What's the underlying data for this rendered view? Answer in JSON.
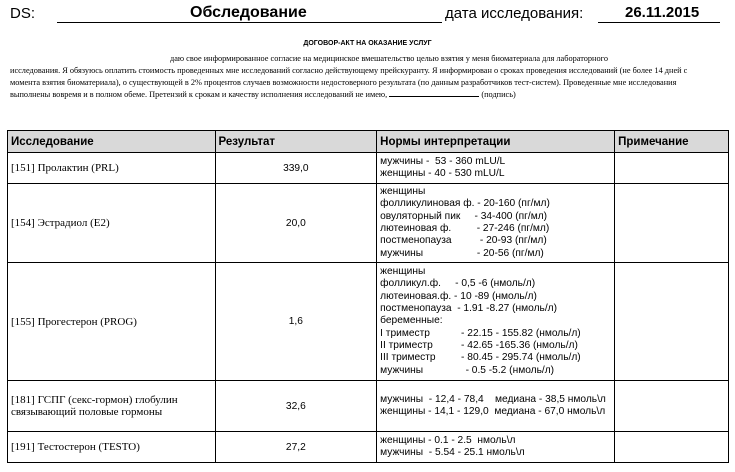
{
  "header": {
    "ds_label": "DS:",
    "title": "Обследование",
    "date_label": "дата исследования:",
    "date": "26.11.2015"
  },
  "contract": {
    "title": "ДОГОВОР-АКТ НА ОКАЗАНИЕ УСЛУГ",
    "p1": "даю свое информированное согласие на медицинское вмешательство целью взятия у меня биоматериала для лабораторного",
    "p2": "исследования. Я обязуюсь оплатить стоимость проведенных мне исследований согласно действующему прейскуранту. Я информирован о сроках проведения исследований (не более 14 дней с момента взятия биоматериала), о существующей в 2% процентов случаев возможности недостоверного результата (по данным разработчиков тест-систем). Проведенные мне исследования выполнены вовремя и в полном обеме. Претензий к срокам и качеству исполнения исследований не имею,",
    "signature": "(подпись)"
  },
  "table": {
    "headers": [
      "Исследование",
      "Результат",
      "Нормы интерпретации",
      "Примечание"
    ],
    "rows": [
      {
        "name": "[151] Пролактин (PRL)",
        "result": "339,0",
        "norms": [
          "мужчины -  53 - 360 mLU/L",
          "женщины - 40 - 530 mLU/L"
        ],
        "note": ""
      },
      {
        "name": "[154] Эстрадиол (E2)",
        "result": "20,0",
        "norms": [
          "женщины",
          "фолликулиновая ф. - 20-160 (пг/мл)",
          "овуляторный пик     - 34-400 (пг/мл)",
          "лютеиновая ф.         - 27-246 (пг/мл)",
          "постменопауза          - 20-93 (пг/мл)",
          "мужчины                   - 20-56 (пг/мл)"
        ],
        "note": ""
      },
      {
        "name": "[155] Прогестерон (PROG)",
        "result": "1,6",
        "norms": [
          "женщины",
          "фолликул.ф.     - 0,5 -6 (нмоль/л)",
          "лютеиновая.ф. - 10 -89 (нмоль/л)",
          "постменопауза  - 1.91 -8.27 (нмоль/л)",
          "беременные:",
          "I триместр           - 22.15 - 155.82 (нмоль/л)",
          "II триместр          - 42.65 -165.36 (нмоль/л)",
          "III триместр         - 80.45 - 295.74 (нмоль/л)",
          "мужчины               - 0.5 -5.2 (нмоль/л)"
        ],
        "note": ""
      },
      {
        "name": "[181] ГСПГ (секс-гормон) глобулин связывающий половые гормоны",
        "result": "32,6",
        "norms": [
          "мужчины  - 12,4 - 78,4    медиана - 38,5 нмоль\\л",
          "женщины - 14,1 - 129,0  медиана - 67,0 нмоль\\л"
        ],
        "note": ""
      },
      {
        "name": "[191] Тестостерон (TESTO)",
        "result": "27,2",
        "norms": [
          "женщины - 0.1 - 2.5  нмоль\\л",
          "мужчины  - 5.54 - 25.1 нмоль\\л"
        ],
        "note": ""
      }
    ]
  }
}
